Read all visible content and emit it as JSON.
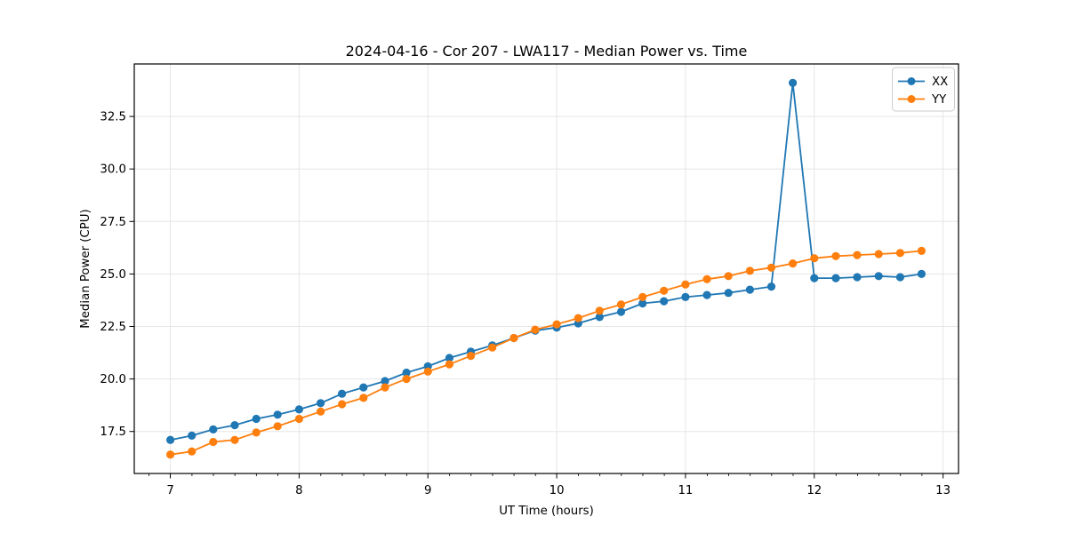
{
  "chart_data": {
    "type": "line",
    "title": "2024-04-16 - Cor 207 - LWA117 - Median Power vs. Time",
    "xlabel": "UT Time (hours)",
    "ylabel": "Median Power (CPU)",
    "xlim": [
      6.72,
      13.12
    ],
    "ylim": [
      15.5,
      35.0
    ],
    "xticks": [
      7,
      8,
      9,
      10,
      11,
      12,
      13
    ],
    "yticks": [
      17.5,
      20.0,
      22.5,
      25.0,
      27.5,
      30.0,
      32.5
    ],
    "minor_xtick_interval": 0.1667,
    "grid": true,
    "legend_position": "upper right",
    "background_color": "#ffffff",
    "grid_color": "#e6e6e6",
    "spine_color": "#000000",
    "x": [
      7.0,
      7.167,
      7.333,
      7.5,
      7.667,
      7.833,
      8.0,
      8.167,
      8.333,
      8.5,
      8.667,
      8.833,
      9.0,
      9.167,
      9.333,
      9.5,
      9.667,
      9.833,
      10.0,
      10.167,
      10.333,
      10.5,
      10.667,
      10.833,
      11.0,
      11.167,
      11.333,
      11.5,
      11.667,
      11.833,
      12.0,
      12.167,
      12.333,
      12.5,
      12.667,
      12.833
    ],
    "series": [
      {
        "name": "XX",
        "color": "#1f77b4",
        "marker": "circle",
        "values": [
          17.1,
          17.3,
          17.6,
          17.8,
          18.1,
          18.3,
          18.55,
          18.85,
          19.3,
          19.6,
          19.9,
          20.3,
          20.6,
          21.0,
          21.3,
          21.6,
          21.95,
          22.3,
          22.45,
          22.65,
          22.95,
          23.2,
          23.6,
          23.7,
          23.9,
          24.0,
          24.1,
          24.25,
          24.4,
          34.1,
          24.8,
          24.8,
          24.85,
          24.9,
          24.85,
          25.0
        ]
      },
      {
        "name": "YY",
        "color": "#ff7f0e",
        "marker": "circle",
        "values": [
          16.4,
          16.55,
          17.0,
          17.1,
          17.45,
          17.75,
          18.1,
          18.45,
          18.8,
          19.1,
          19.6,
          20.0,
          20.35,
          20.7,
          21.1,
          21.5,
          21.95,
          22.35,
          22.6,
          22.9,
          23.25,
          23.55,
          23.9,
          24.2,
          24.5,
          24.75,
          24.9,
          25.15,
          25.3,
          25.5,
          25.75,
          25.85,
          25.9,
          25.95,
          26.0,
          26.1
        ]
      }
    ]
  }
}
